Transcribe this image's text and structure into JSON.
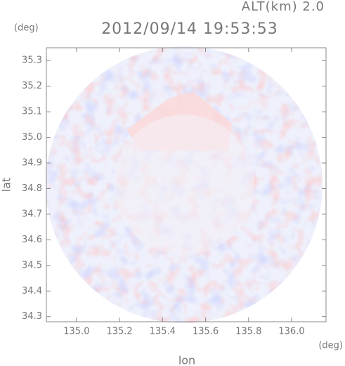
{
  "chart_data": {
    "type": "radar-map",
    "title": "2012/09/14 19:53:53",
    "subtitle": "ALT(km) 2.0",
    "xlabel": "lon",
    "ylabel": "lat",
    "x_unit": "(deg)",
    "y_unit": "(deg)",
    "xlim": [
      134.86,
      136.16
    ],
    "xticks": [
      {
        "value": 135,
        "label": "135.0"
      },
      {
        "value": 135.2,
        "label": "135.2"
      },
      {
        "value": 135.4,
        "label": "135.4"
      },
      {
        "value": 135.6,
        "label": "135.6"
      },
      {
        "value": 135.8,
        "label": "135.8"
      },
      {
        "value": 136,
        "label": "136.0"
      }
    ],
    "ylim": [
      34.28,
      35.35
    ],
    "yticks": [
      34.3,
      34.4,
      34.5,
      34.6,
      34.7,
      34.8,
      34.9,
      {
        "value": 35,
        "label": "35.0"
      },
      35.1,
      35.2,
      35.3
    ]
  }
}
